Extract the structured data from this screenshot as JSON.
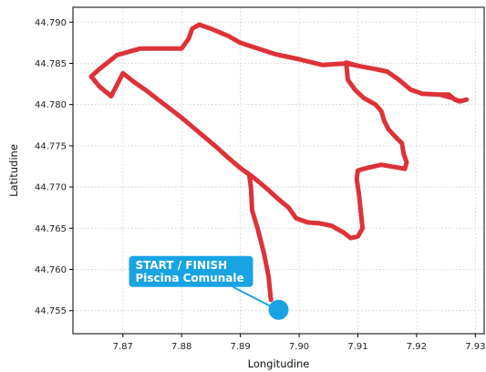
{
  "chart_data": {
    "type": "line",
    "title": "",
    "xlabel": "Longitudine",
    "ylabel": "Latitudine",
    "xlim": [
      7.8615,
      7.9315
    ],
    "ylim": [
      44.7522,
      44.7918
    ],
    "x_ticks": [
      "7.87",
      "7.88",
      "7.89",
      "7.90",
      "7.91",
      "7.92",
      "7.93"
    ],
    "x_tick_values": [
      7.87,
      7.88,
      7.89,
      7.9,
      7.91,
      7.92,
      7.93
    ],
    "y_ticks": [
      "44.755",
      "44.760",
      "44.765",
      "44.770",
      "44.775",
      "44.780",
      "44.785",
      "44.790"
    ],
    "y_tick_values": [
      44.755,
      44.76,
      44.765,
      44.77,
      44.775,
      44.78,
      44.785,
      44.79
    ],
    "grid": true,
    "route": {
      "color": "#dd3237",
      "points": [
        [
          7.8952,
          44.7563
        ],
        [
          7.8948,
          44.7592
        ],
        [
          7.894,
          44.762
        ],
        [
          7.893,
          44.7648
        ],
        [
          7.892,
          44.7672
        ],
        [
          7.8918,
          44.77
        ],
        [
          7.8915,
          44.7715
        ],
        [
          7.89,
          44.7723
        ],
        [
          7.888,
          44.7735
        ],
        [
          7.886,
          44.7748
        ],
        [
          7.884,
          44.776
        ],
        [
          7.882,
          44.7772
        ],
        [
          7.88,
          44.7784
        ],
        [
          7.878,
          44.7795
        ],
        [
          7.876,
          44.7806
        ],
        [
          7.874,
          44.7817
        ],
        [
          7.872,
          44.7827
        ],
        [
          7.87,
          44.7838
        ],
        [
          7.868,
          44.781
        ],
        [
          7.866,
          44.7822
        ],
        [
          7.8646,
          44.7834
        ],
        [
          7.866,
          44.7843
        ],
        [
          7.869,
          44.786
        ],
        [
          7.873,
          44.7868
        ],
        [
          7.877,
          44.7868
        ],
        [
          7.88,
          44.7868
        ],
        [
          7.8812,
          44.788
        ],
        [
          7.8818,
          44.7892
        ],
        [
          7.883,
          44.7897
        ],
        [
          7.885,
          44.7892
        ],
        [
          7.888,
          44.7883
        ],
        [
          7.89,
          44.7875
        ],
        [
          7.893,
          44.7868
        ],
        [
          7.896,
          44.7861
        ],
        [
          7.9,
          44.7855
        ],
        [
          7.904,
          44.7848
        ],
        [
          7.908,
          44.785
        ],
        [
          7.91,
          44.7847
        ],
        [
          7.913,
          44.7843
        ],
        [
          7.915,
          44.784
        ],
        [
          7.917,
          44.783
        ],
        [
          7.919,
          44.7818
        ],
        [
          7.921,
          44.7813
        ],
        [
          7.924,
          44.7812
        ],
        [
          7.9255,
          44.7812
        ],
        [
          7.9265,
          44.7806
        ],
        [
          7.9275,
          44.7804
        ],
        [
          7.9285,
          44.7806
        ],
        [
          7.9272,
          44.7804
        ],
        [
          7.926,
          44.7808
        ],
        [
          7.924,
          44.7812
        ],
        [
          7.921,
          44.7813
        ],
        [
          7.919,
          44.7818
        ],
        [
          7.917,
          44.783
        ],
        [
          7.915,
          44.784
        ],
        [
          7.913,
          44.7843
        ],
        [
          7.91,
          44.7847
        ],
        [
          7.908,
          44.7851
        ],
        [
          7.9083,
          44.783
        ],
        [
          7.9095,
          44.7818
        ],
        [
          7.911,
          44.7808
        ],
        [
          7.913,
          44.78
        ],
        [
          7.914,
          44.7792
        ],
        [
          7.9145,
          44.778
        ],
        [
          7.9152,
          44.777
        ],
        [
          7.9165,
          44.776
        ],
        [
          7.9175,
          44.7753
        ],
        [
          7.9178,
          44.774
        ],
        [
          7.9183,
          44.773
        ],
        [
          7.918,
          44.7722
        ],
        [
          7.9165,
          44.7724
        ],
        [
          7.914,
          44.7727
        ],
        [
          7.9115,
          44.7723
        ],
        [
          7.91,
          44.772
        ],
        [
          7.9098,
          44.771
        ],
        [
          7.9102,
          44.769
        ],
        [
          7.9105,
          44.767
        ],
        [
          7.9108,
          44.765
        ],
        [
          7.91,
          44.764
        ],
        [
          7.9088,
          44.7638
        ],
        [
          7.9075,
          44.7645
        ],
        [
          7.9055,
          44.7653
        ],
        [
          7.9035,
          44.7656
        ],
        [
          7.9015,
          44.7657
        ],
        [
          7.8995,
          44.7662
        ],
        [
          7.8982,
          44.7675
        ],
        [
          7.8965,
          44.7685
        ],
        [
          7.8945,
          44.7698
        ],
        [
          7.8925,
          44.771
        ],
        [
          7.891,
          44.7718
        ]
      ]
    },
    "start_point": {
      "x": 7.8965,
      "y": 44.7551,
      "color": "#1aa3e3"
    },
    "annotation": {
      "lines": [
        "START / FINISH",
        "Piscina Comunale"
      ],
      "box_color": "#1aa3e3",
      "text_color": "#ffffff",
      "anchor": "start_point",
      "placement": "upper-left"
    }
  }
}
